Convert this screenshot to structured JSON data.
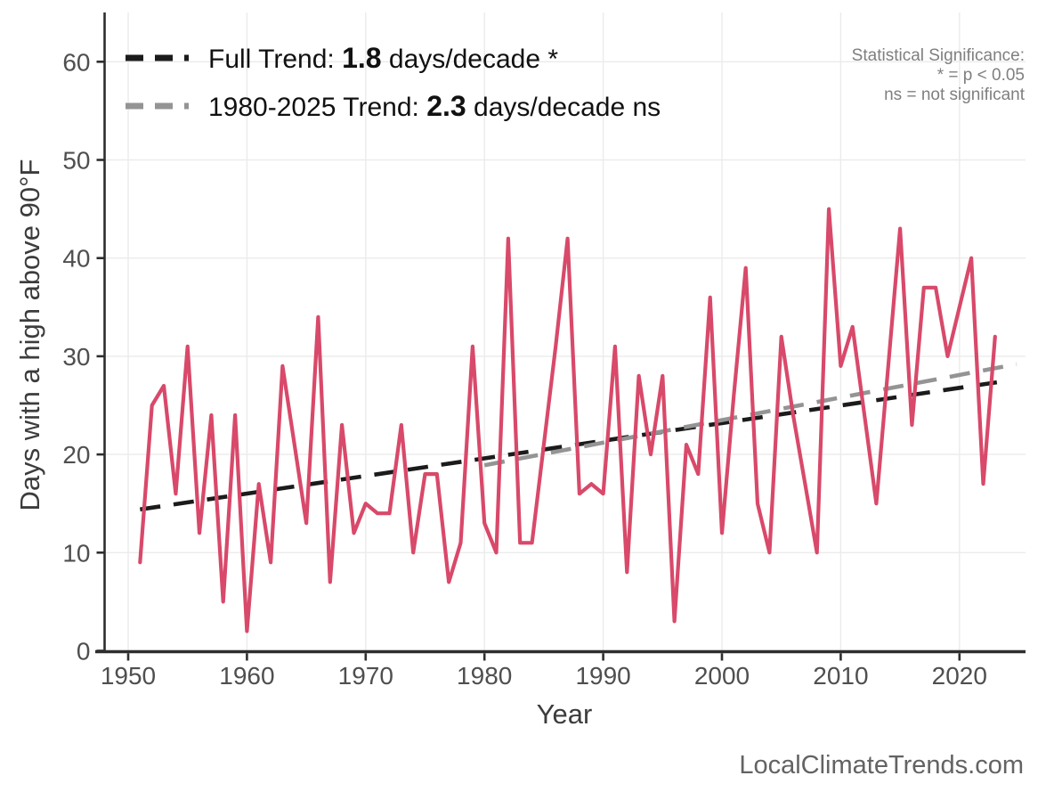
{
  "chart_data": {
    "type": "line",
    "title": "",
    "xlabel": "Year",
    "ylabel": "Days with a high above 90°F",
    "x_ticks": [
      1950,
      1960,
      1970,
      1980,
      1990,
      2000,
      2010,
      2020
    ],
    "y_ticks": [
      0,
      10,
      20,
      30,
      40,
      50,
      60
    ],
    "xlim": [
      1947,
      2026
    ],
    "ylim": [
      0,
      65
    ],
    "grid": true,
    "legend_position": "top-left",
    "series": [
      {
        "name": "annual-days-above-90F",
        "type": "line",
        "years": [
          1951,
          1952,
          1953,
          1954,
          1955,
          1956,
          1957,
          1958,
          1959,
          1960,
          1961,
          1962,
          1963,
          1964,
          1965,
          1966,
          1967,
          1968,
          1969,
          1970,
          1971,
          1972,
          1973,
          1974,
          1975,
          1976,
          1977,
          1978,
          1979,
          1980,
          1981,
          1982,
          1983,
          1984,
          1985,
          1986,
          1987,
          1988,
          1989,
          1990,
          1991,
          1992,
          1993,
          1994,
          1995,
          1996,
          1997,
          1998,
          1999,
          2000,
          2001,
          2002,
          2003,
          2004,
          2005,
          2006,
          2007,
          2008,
          2009,
          2010,
          2011,
          2012,
          2013,
          2014,
          2015,
          2016,
          2017,
          2018,
          2019,
          2020,
          2021,
          2022,
          2023
        ],
        "values": [
          9,
          25,
          27,
          16,
          31,
          12,
          24,
          5,
          24,
          2,
          17,
          9,
          29,
          21,
          13,
          34,
          7,
          23,
          12,
          15,
          14,
          14,
          23,
          10,
          18,
          18,
          7,
          11,
          31,
          13,
          10,
          42,
          11,
          11,
          21,
          31,
          42,
          16,
          17,
          16,
          31,
          8,
          28,
          20,
          28,
          3,
          21,
          18,
          36,
          12,
          26,
          39,
          15,
          10,
          32,
          24,
          17,
          10,
          45,
          29,
          33,
          24,
          15,
          29,
          43,
          23,
          37,
          37,
          30,
          35,
          40,
          17,
          32
        ]
      },
      {
        "name": "full-trend",
        "type": "dashed-trend",
        "slope_days_per_decade": 1.8,
        "significance": "*",
        "start": {
          "year": 1951,
          "value": 14.4
        },
        "end": {
          "year": 2024,
          "value": 27.5
        }
      },
      {
        "name": "trend-1980-2025",
        "type": "dashed-trend",
        "slope_days_per_decade": 2.3,
        "significance": "ns",
        "start": {
          "year": 1980,
          "value": 18.9
        },
        "end": {
          "year": 2024.8,
          "value": 29.2
        }
      }
    ]
  },
  "legend": {
    "full_trend": {
      "prefix": "Full Trend: ",
      "value": "1.8",
      "suffix": " days/decade *"
    },
    "recent_trend": {
      "prefix": "1980-2025 Trend: ",
      "value": "2.3",
      "suffix": " days/decade ns"
    }
  },
  "annotations": {
    "significance_note": {
      "line1": "Statistical Significance:",
      "line2": "* = p < 0.05",
      "line3": "ns = not significant"
    }
  },
  "axis": {
    "x_label": "Year",
    "y_label": "Days with a high above 90°F"
  },
  "footer": {
    "watermark": "LocalClimateTrends.com"
  },
  "colors": {
    "series_line": "#d8496a",
    "full_trend": "#1b1b1b",
    "recent_trend": "#949494",
    "gridline": "#ebebeb",
    "axis": "#2e2e2e",
    "tick_label": "#4f4f4f"
  }
}
